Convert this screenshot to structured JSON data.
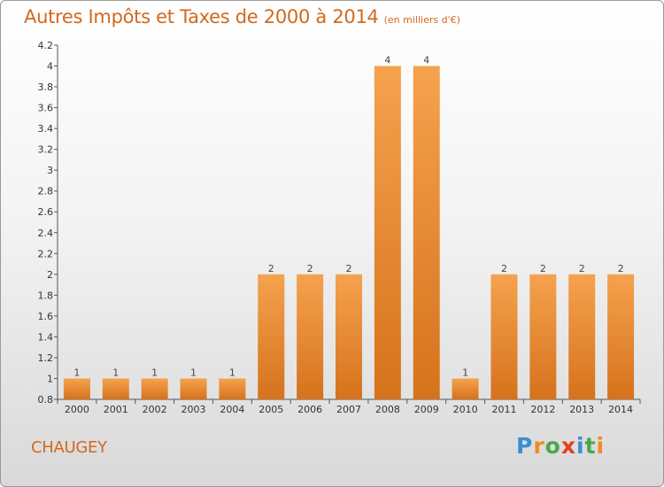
{
  "title": "Autres Impôts et Taxes de 2000 à 2014",
  "subtitle": "(en milliers d'€)",
  "commune": "CHAUGEY",
  "logo": {
    "text": "Proxiti",
    "letters": [
      "P",
      "r",
      "o",
      "x",
      "i",
      "t",
      "i"
    ],
    "colors": [
      "#3a8fd0",
      "#f08a24",
      "#4aa84a",
      "#e04020",
      "#3a8fd0",
      "#4aa84a",
      "#f08a24"
    ]
  },
  "colors": {
    "accent": "#d2691e",
    "bar": "#f0963c",
    "bar_dark": "#d6721c"
  },
  "chart_data": {
    "type": "bar",
    "categories": [
      "2000",
      "2001",
      "2002",
      "2003",
      "2004",
      "2005",
      "2006",
      "2007",
      "2008",
      "2009",
      "2010",
      "2011",
      "2012",
      "2013",
      "2014"
    ],
    "values": [
      1,
      1,
      1,
      1,
      1,
      2,
      2,
      2,
      4,
      4,
      1,
      2,
      2,
      2,
      2
    ],
    "data_labels": [
      "1",
      "1",
      "1",
      "1",
      "1",
      "2",
      "2",
      "2",
      "4",
      "4",
      "1",
      "2",
      "2",
      "2",
      "2"
    ],
    "yticks": [
      "0.8",
      "1",
      "1.2",
      "1.4",
      "1.6",
      "1.8",
      "2",
      "2.2",
      "2.4",
      "2.6",
      "2.8",
      "3",
      "3.2",
      "3.4",
      "3.6",
      "3.8",
      "4",
      "4.2"
    ],
    "ylim": [
      0.8,
      4.2
    ],
    "grid": false,
    "legend": "none"
  }
}
